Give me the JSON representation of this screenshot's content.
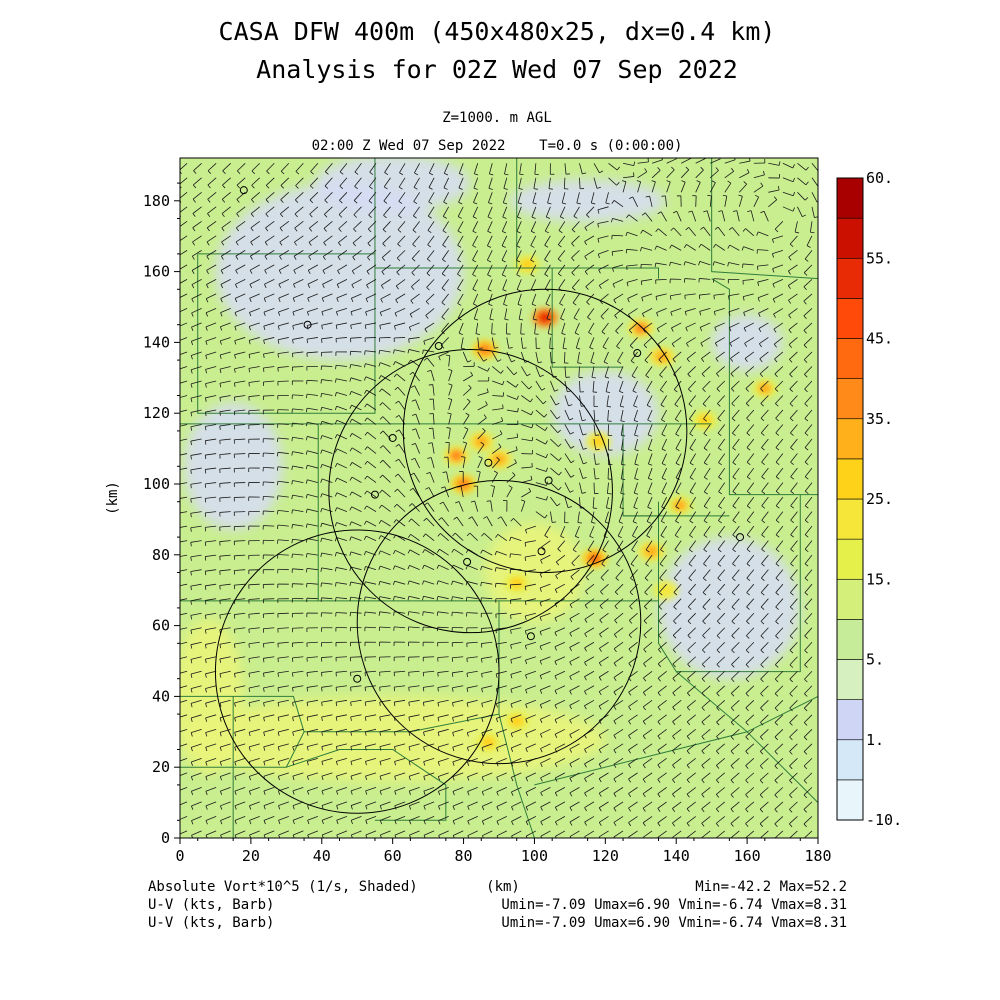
{
  "title_line1": "CASA DFW 400m (450x480x25, dx=0.4 km)",
  "title_line2": "Analysis for 02Z Wed 07 Sep 2022",
  "level": "Z=1000. m AGL",
  "time_line": "02:00 Z Wed 07 Sep 2022    T=0.0 s (0:00:00)",
  "footer": {
    "field_label": "Absolute Vort*10^5 (1/s, Shaded)",
    "x_unit": "(km)",
    "minmax": "Min=-42.2 Max=52.2",
    "barb_label_1": "U-V (kts, Barb)",
    "barb_stats_1": "Umin=-7.09 Umax=6.90 Vmin=-6.74 Vmax=8.31",
    "barb_label_2": "U-V (kts, Barb)",
    "barb_stats_2": "Umin=-7.09 Umax=6.90 Vmin=-6.74 Vmax=8.31"
  },
  "colors": {
    "background_field": "#c9ee8f",
    "low_values": "#d6dcf7",
    "mid_values": "#e9f47a",
    "high_values": "#ff7a1a",
    "max_values": "#cc1a00",
    "boundaries": "#2f7d3a",
    "range_rings": "#000000"
  },
  "chart_data": {
    "type": "heatmap",
    "xlabel": "(km)",
    "ylabel": "(km)",
    "xlim": [
      0,
      180
    ],
    "ylim": [
      0,
      190
    ],
    "xticks": [
      0,
      20,
      40,
      60,
      80,
      100,
      120,
      140,
      160,
      180
    ],
    "yticks": [
      0,
      20,
      40,
      60,
      80,
      100,
      120,
      140,
      160,
      180
    ],
    "colorbar": {
      "levels": [
        -10,
        -5,
        1,
        3,
        5,
        10,
        15,
        20,
        25,
        30,
        35,
        40,
        45,
        50,
        55,
        60
      ],
      "colors": [
        "#e8f6fc",
        "#d4e8f8",
        "#cfd6f5",
        "#d6f0c0",
        "#c6ec9a",
        "#d4f07a",
        "#e6f04a",
        "#f7e63a",
        "#ffd21a",
        "#ffb01a",
        "#ff8a1a",
        "#ff6a10",
        "#ff4a0a",
        "#e82a05",
        "#cc1000",
        "#a80000"
      ],
      "labels": [
        {
          "text": "60.",
          "value": 60
        },
        {
          "text": "55.",
          "value": 55
        },
        {
          "text": "45.",
          "value": 45
        },
        {
          "text": "35.",
          "value": 35
        },
        {
          "text": "25.",
          "value": 25
        },
        {
          "text": "15.",
          "value": 15
        },
        {
          "text": "5.",
          "value": 5
        },
        {
          "text": "1.",
          "value": 1
        },
        {
          "text": "-10.",
          "value": -10
        }
      ]
    },
    "range_rings": [
      {
        "cx": 103,
        "cy": 115,
        "r": 40
      },
      {
        "cx": 82,
        "cy": 98,
        "r": 40
      },
      {
        "cx": 90,
        "cy": 61,
        "r": 40
      },
      {
        "cx": 50,
        "cy": 47,
        "r": 40
      }
    ],
    "radar_sites": [
      [
        18,
        183
      ],
      [
        36,
        145
      ],
      [
        73,
        139
      ],
      [
        129,
        137
      ],
      [
        60,
        113
      ],
      [
        87,
        106
      ],
      [
        55,
        97
      ],
      [
        104,
        101
      ],
      [
        102,
        81
      ],
      [
        81,
        78
      ],
      [
        158,
        85
      ],
      [
        99,
        57
      ],
      [
        50,
        45
      ]
    ],
    "hotspots": [
      {
        "x": 103,
        "y": 147,
        "value": 50
      },
      {
        "x": 86,
        "y": 138,
        "value": 38
      },
      {
        "x": 130,
        "y": 144,
        "value": 35
      },
      {
        "x": 136,
        "y": 136,
        "value": 33
      },
      {
        "x": 165,
        "y": 127,
        "value": 30
      },
      {
        "x": 78,
        "y": 108,
        "value": 35
      },
      {
        "x": 85,
        "y": 112,
        "value": 32
      },
      {
        "x": 90,
        "y": 107,
        "value": 34
      },
      {
        "x": 80,
        "y": 100,
        "value": 38
      },
      {
        "x": 117,
        "y": 79,
        "value": 40
      },
      {
        "x": 133,
        "y": 81,
        "value": 33
      },
      {
        "x": 141,
        "y": 94,
        "value": 30
      },
      {
        "x": 98,
        "y": 162,
        "value": 28
      },
      {
        "x": 95,
        "y": 72,
        "value": 28
      },
      {
        "x": 87,
        "y": 27,
        "value": 28
      },
      {
        "x": 95,
        "y": 33,
        "value": 26
      },
      {
        "x": 148,
        "y": 118,
        "value": 26
      },
      {
        "x": 118,
        "y": 112,
        "value": 25
      },
      {
        "x": 137,
        "y": 70,
        "value": 24
      }
    ],
    "low_areas": [
      {
        "x": 45,
        "y": 160,
        "rx": 35,
        "ry": 25
      },
      {
        "x": 60,
        "y": 185,
        "rx": 22,
        "ry": 8
      },
      {
        "x": 115,
        "y": 180,
        "rx": 22,
        "ry": 6
      },
      {
        "x": 15,
        "y": 105,
        "rx": 14,
        "ry": 18
      },
      {
        "x": 155,
        "y": 65,
        "rx": 20,
        "ry": 20
      },
      {
        "x": 120,
        "y": 120,
        "rx": 15,
        "ry": 12
      },
      {
        "x": 160,
        "y": 140,
        "rx": 10,
        "ry": 8
      }
    ],
    "yellow_areas": [
      {
        "x": 60,
        "y": 28,
        "rx": 60,
        "ry": 12
      },
      {
        "x": 8,
        "y": 40,
        "rx": 10,
        "ry": 22
      },
      {
        "x": 100,
        "y": 75,
        "rx": 14,
        "ry": 14
      }
    ],
    "circulations": [
      {
        "x": 100,
        "y": 90,
        "sense": "cyclonic"
      },
      {
        "x": 170,
        "y": 175,
        "sense": "cyclonic"
      }
    ]
  }
}
